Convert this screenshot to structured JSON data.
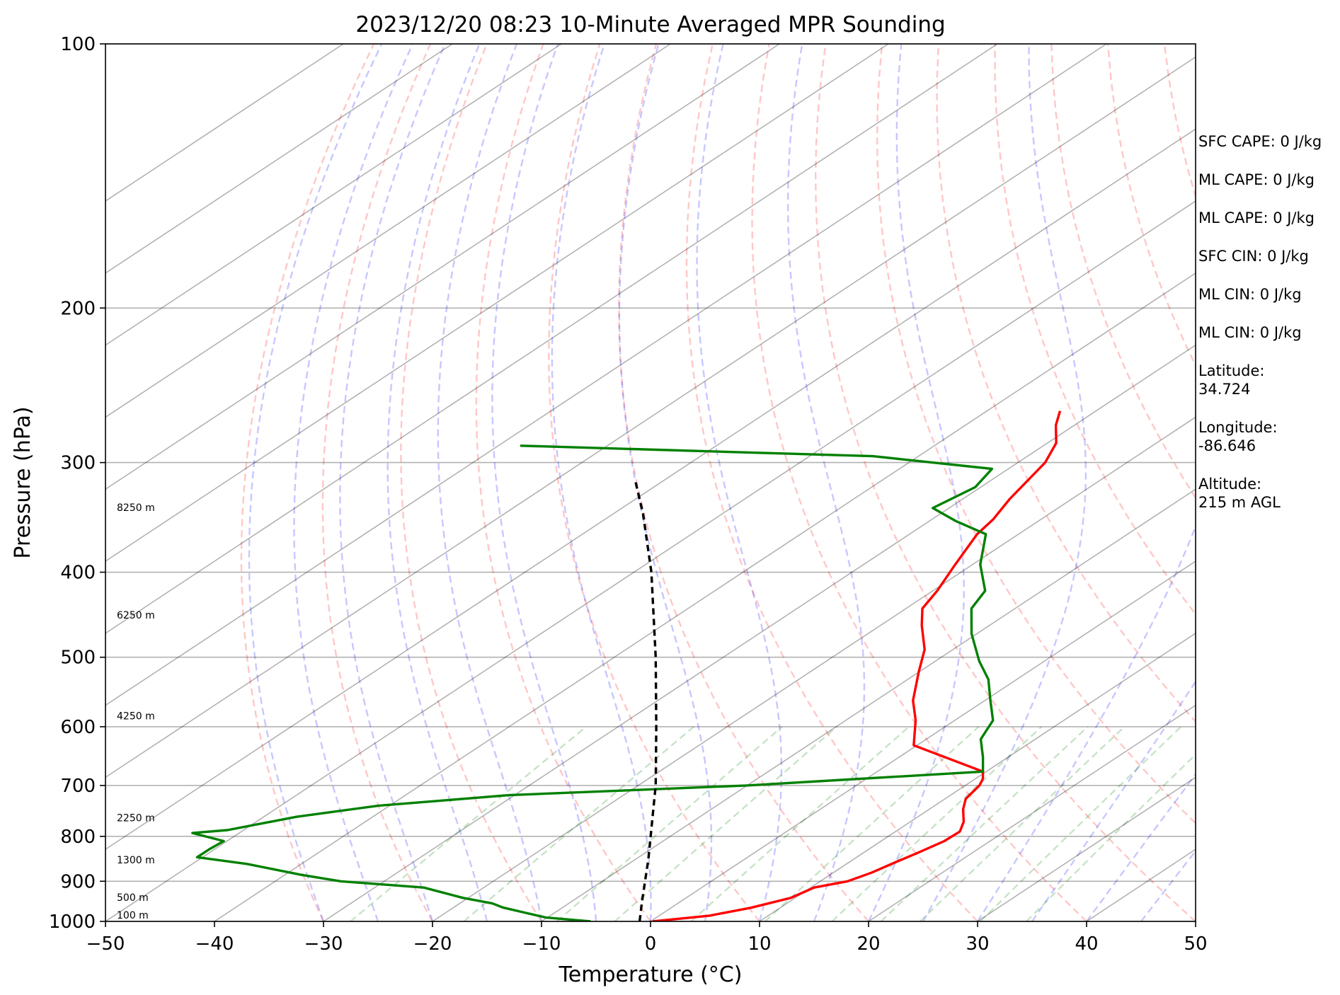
{
  "chart_data": {
    "type": "line",
    "title": "2023/12/20 08:23 10-Minute Averaged MPR Sounding",
    "xlabel": "Temperature (°C)",
    "ylabel": "Pressure (hPa)",
    "xlim": [
      -50,
      50
    ],
    "ylim": [
      1000,
      100
    ],
    "y_scale": "log",
    "skew": true,
    "x_ticks": [
      "−50",
      "−40",
      "−30",
      "−20",
      "−10",
      "0",
      "10",
      "20",
      "30",
      "40",
      "50"
    ],
    "y_ticks": [
      {
        "p": 100,
        "label": "100"
      },
      {
        "p": 200,
        "label": "200"
      },
      {
        "p": 300,
        "label": "300"
      },
      {
        "p": 400,
        "label": "400"
      },
      {
        "p": 500,
        "label": "500"
      },
      {
        "p": 600,
        "label": "600"
      },
      {
        "p": 700,
        "label": "700"
      },
      {
        "p": 800,
        "label": "800"
      },
      {
        "p": 900,
        "label": "900"
      },
      {
        "p": 1000,
        "label": "1000"
      }
    ],
    "height_labels": [
      {
        "p": 1000,
        "label": "100 m"
      },
      {
        "p": 955,
        "label": "500 m"
      },
      {
        "p": 865,
        "label": "1300 m"
      },
      {
        "p": 775,
        "label": "2250 m"
      },
      {
        "p": 593,
        "label": "4250 m"
      },
      {
        "p": 455,
        "label": "6250 m"
      },
      {
        "p": 343,
        "label": "8250 m"
      }
    ],
    "series": [
      {
        "color": "#ff0000",
        "points": [
          [
            1000,
            0.2
          ],
          [
            985,
            4.6
          ],
          [
            965,
            7.3
          ],
          [
            940,
            9.6
          ],
          [
            915,
            10.3
          ],
          [
            900,
            12.5
          ],
          [
            880,
            13.5
          ],
          [
            855,
            14.3
          ],
          [
            835,
            15.0
          ],
          [
            810,
            15.8
          ],
          [
            790,
            15.9
          ],
          [
            770,
            14.9
          ],
          [
            745,
            13.1
          ],
          [
            725,
            11.9
          ],
          [
            700,
            11.3
          ],
          [
            688,
            10.7
          ],
          [
            675,
            9.7
          ],
          [
            630,
            -0.3
          ],
          [
            590,
            -3.6
          ],
          [
            560,
            -6.6
          ],
          [
            520,
            -10.0
          ],
          [
            490,
            -12.6
          ],
          [
            460,
            -16.2
          ],
          [
            440,
            -18.5
          ],
          [
            420,
            -19.6
          ],
          [
            392,
            -21.6
          ],
          [
            362,
            -23.8
          ],
          [
            348,
            -24.4
          ],
          [
            330,
            -25.7
          ],
          [
            300,
            -27.5
          ],
          [
            285,
            -29.2
          ],
          [
            272,
            -31.7
          ],
          [
            262,
            -33.3
          ]
        ]
      },
      {
        "color": "#008000",
        "points": [
          [
            1000,
            -5.5
          ],
          [
            990,
            -10.1
          ],
          [
            977,
            -12.8
          ],
          [
            964,
            -15.5
          ],
          [
            954,
            -17.0
          ],
          [
            940,
            -20.5
          ],
          [
            915,
            -25.5
          ],
          [
            900,
            -34.0
          ],
          [
            885,
            -38.5
          ],
          [
            860,
            -45.0
          ],
          [
            845,
            -50.5
          ],
          [
            828,
            -50.5
          ],
          [
            810,
            -50.3
          ],
          [
            793,
            -54.3
          ],
          [
            787,
            -51.5
          ],
          [
            760,
            -47.0
          ],
          [
            738,
            -41.0
          ],
          [
            718,
            -30.5
          ],
          [
            700,
            -10.0
          ],
          [
            675,
            9.7
          ],
          [
            650,
            7.7
          ],
          [
            620,
            5.0
          ],
          [
            590,
            3.5
          ],
          [
            560,
            0.5
          ],
          [
            530,
            -2.6
          ],
          [
            505,
            -6.0
          ],
          [
            470,
            -10.5
          ],
          [
            440,
            -14.0
          ],
          [
            420,
            -15.2
          ],
          [
            392,
            -19.3
          ],
          [
            362,
            -23.0
          ],
          [
            350,
            -27.5
          ],
          [
            338,
            -31.5
          ],
          [
            320,
            -30.5
          ],
          [
            305,
            -31.5
          ],
          [
            295,
            -44.2
          ],
          [
            287,
            -78.0
          ]
        ]
      },
      {
        "color": "#000000",
        "dashed": true,
        "points": [
          [
            1000,
            -1.0
          ],
          [
            950,
            -3.5
          ],
          [
            850,
            -8.8
          ],
          [
            700,
            -18.4
          ],
          [
            600,
            -26.5
          ],
          [
            500,
            -36.2
          ],
          [
            400,
            -48.4
          ],
          [
            343,
            -57.3
          ],
          [
            313,
            -62.9
          ]
        ]
      }
    ]
  },
  "stats": [
    "SFC CAPE: 0 J/kg",
    "ML CAPE: 0 J/kg",
    "ML CAPE: 0 J/kg",
    "SFC CIN: 0 J/kg",
    "ML CIN: 0 J/kg",
    "ML CIN: 0 J/kg",
    "Latitude:\n34.724",
    "Longitude:\n-86.646",
    "Altitude:\n215 m AGL"
  ]
}
